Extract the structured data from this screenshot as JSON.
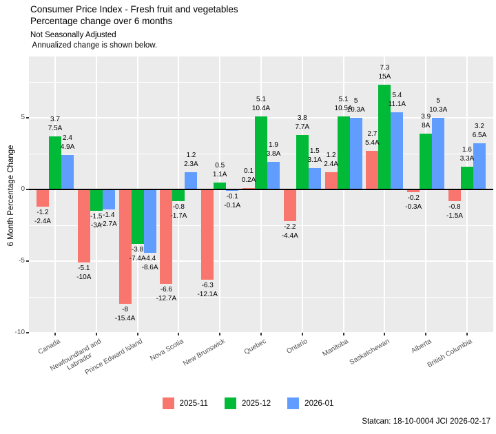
{
  "header": {
    "title_line1": "Consumer Price Index - Fresh fruit and vegetables",
    "title_line2": "Percentage change over 6 months",
    "subtitle_line1": "Not Seasonally Adjusted",
    "subtitle_line2": " Annualized change is shown below."
  },
  "footer": {
    "source": "Statcan: 18-10-0004 JCI 2026-02-17"
  },
  "colors": {
    "panel_bg": "#EBEBEB",
    "grid": "#FFFFFF",
    "axis_text": "#4D4D4D",
    "zero_line": "#000000",
    "series_2025_11": "#F8766D",
    "series_2025_12": "#00BA38",
    "series_2026_01": "#619CFF"
  },
  "legend": {
    "items": [
      {
        "label": "2025-11",
        "color": "#F8766D"
      },
      {
        "label": "2025-12",
        "color": "#00BA38"
      },
      {
        "label": "2026-01",
        "color": "#619CFF"
      }
    ]
  },
  "chart_data": {
    "type": "bar",
    "title": "Consumer Price Index - Fresh fruit and vegetables",
    "subtitle": "Percentage change over 6 months",
    "notes": [
      "Not Seasonally Adjusted",
      "Annualized change is shown below."
    ],
    "xlabel": "",
    "ylabel": "6 Month Percentage Change",
    "ylim": [
      -10.3,
      9.3
    ],
    "y_ticks": [
      5,
      0,
      -5,
      -10
    ],
    "y_minor_ticks": [
      7.5,
      2.5,
      -2.5,
      -7.5
    ],
    "grid": true,
    "legend_position": "bottom",
    "categories": [
      "Canada",
      "Newfoundland and Labrador",
      "Prince Edward Island",
      "Nova Scotia",
      "New Brunswick",
      "Quebec",
      "Ontario",
      "Manitoba",
      "Saskatchewan",
      "Alberta",
      "British Columbia"
    ],
    "categories_display": [
      "Canada",
      "Newfoundland and\nLabrador",
      "Prince Edward Island",
      "Nova Scotia",
      "New Brunswick",
      "Quebec",
      "Ontario",
      "Manitoba",
      "Saskatchewan",
      "Alberta",
      "British Columbia"
    ],
    "series": [
      {
        "name": "2025-11",
        "color": "#F8766D",
        "values": [
          -1.2,
          -5.1,
          -8,
          -6.6,
          -6.3,
          0.1,
          -2.2,
          1.2,
          2.7,
          -0.2,
          -0.8
        ],
        "value_labels": [
          "-1.2",
          "-5.1",
          "-8",
          "-6.6",
          "-6.3",
          "0.1",
          "-2.2",
          "1.2",
          "2.7",
          "-0.2",
          "-0.8"
        ],
        "annualized_values": [
          -2.4,
          -10,
          -15.4,
          -12.7,
          -12.1,
          0.2,
          -4.4,
          2.4,
          5.4,
          -0.3,
          -1.5
        ],
        "annualized_labels": [
          "-2.4A",
          "-10A",
          "-15.4A",
          "-12.7A",
          "-12.1A",
          "0.2A",
          "-4.4A",
          "2.4A",
          "5.4A",
          "-0.3A",
          "-1.5A"
        ]
      },
      {
        "name": "2025-12",
        "color": "#00BA38",
        "values": [
          3.7,
          -1.5,
          -3.8,
          -0.8,
          0.5,
          5.1,
          3.8,
          5.1,
          7.3,
          3.9,
          1.6
        ],
        "value_labels": [
          "3.7",
          "-1.5",
          "-3.8",
          "-0.8",
          "0.5",
          "5.1",
          "3.8",
          "5.1",
          "7.3",
          "3.9",
          "1.6"
        ],
        "annualized_values": [
          7.5,
          -3,
          -7.4,
          -1.7,
          1.1,
          10.4,
          7.7,
          10.5,
          15,
          8,
          3.3
        ],
        "annualized_labels": [
          "7.5A",
          "-3A",
          "-7.4A",
          "-1.7A",
          "1.1A",
          "10.4A",
          "7.7A",
          "10.5A",
          "15A",
          "8A",
          "3.3A"
        ]
      },
      {
        "name": "2026-01",
        "color": "#619CFF",
        "values": [
          2.4,
          -1.4,
          -4.4,
          1.2,
          -0.1,
          1.9,
          1.5,
          5,
          5.4,
          5,
          3.2
        ],
        "value_labels": [
          "2.4",
          "-1.4",
          "-4.4",
          "1.2",
          "-0.1",
          "1.9",
          "1.5",
          "5",
          "5.4",
          "5",
          "3.2"
        ],
        "annualized_values": [
          4.9,
          -2.7,
          -8.6,
          2.3,
          -0.1,
          3.8,
          3.1,
          10.3,
          11.1,
          10.3,
          6.5
        ],
        "annualized_labels": [
          "4.9A",
          "-2.7A",
          "-8.6A",
          "2.3A",
          "-0.1A",
          "3.8A",
          "3.1A",
          "10.3A",
          "11.1A",
          "10.3A",
          "6.5A"
        ]
      }
    ]
  }
}
